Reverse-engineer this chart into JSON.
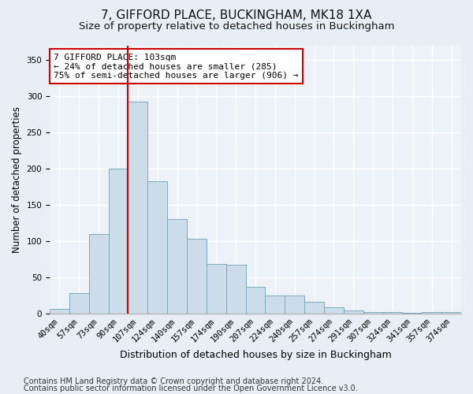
{
  "title": "7, GIFFORD PLACE, BUCKINGHAM, MK18 1XA",
  "subtitle": "Size of property relative to detached houses in Buckingham",
  "xlabel": "Distribution of detached houses by size in Buckingham",
  "ylabel": "Number of detached properties",
  "categories": [
    "40sqm",
    "57sqm",
    "73sqm",
    "90sqm",
    "107sqm",
    "124sqm",
    "140sqm",
    "157sqm",
    "174sqm",
    "190sqm",
    "207sqm",
    "224sqm",
    "240sqm",
    "257sqm",
    "274sqm",
    "291sqm",
    "307sqm",
    "324sqm",
    "341sqm",
    "357sqm",
    "374sqm"
  ],
  "values": [
    6,
    28,
    110,
    200,
    292,
    182,
    130,
    103,
    68,
    67,
    37,
    25,
    25,
    16,
    8,
    4,
    2,
    2,
    1,
    2,
    2
  ],
  "bar_color": "#ccdce8",
  "bar_edge_color": "#7aaabb",
  "vline_x": 3.5,
  "vline_color": "#cc0000",
  "annotation_text": "7 GIFFORD PLACE: 103sqm\n← 24% of detached houses are smaller (285)\n75% of semi-detached houses are larger (906) →",
  "annotation_box_color": "#ffffff",
  "annotation_box_edge": "#cc0000",
  "ylim": [
    0,
    370
  ],
  "yticks": [
    0,
    50,
    100,
    150,
    200,
    250,
    300,
    350
  ],
  "bg_color": "#e8eef5",
  "plot_bg_color": "#edf2f8",
  "footer_line1": "Contains HM Land Registry data © Crown copyright and database right 2024.",
  "footer_line2": "Contains public sector information licensed under the Open Government Licence v3.0.",
  "title_fontsize": 11,
  "subtitle_fontsize": 9.5,
  "xlabel_fontsize": 9,
  "ylabel_fontsize": 8.5,
  "tick_fontsize": 7.5,
  "footer_fontsize": 7,
  "annot_fontsize": 8
}
